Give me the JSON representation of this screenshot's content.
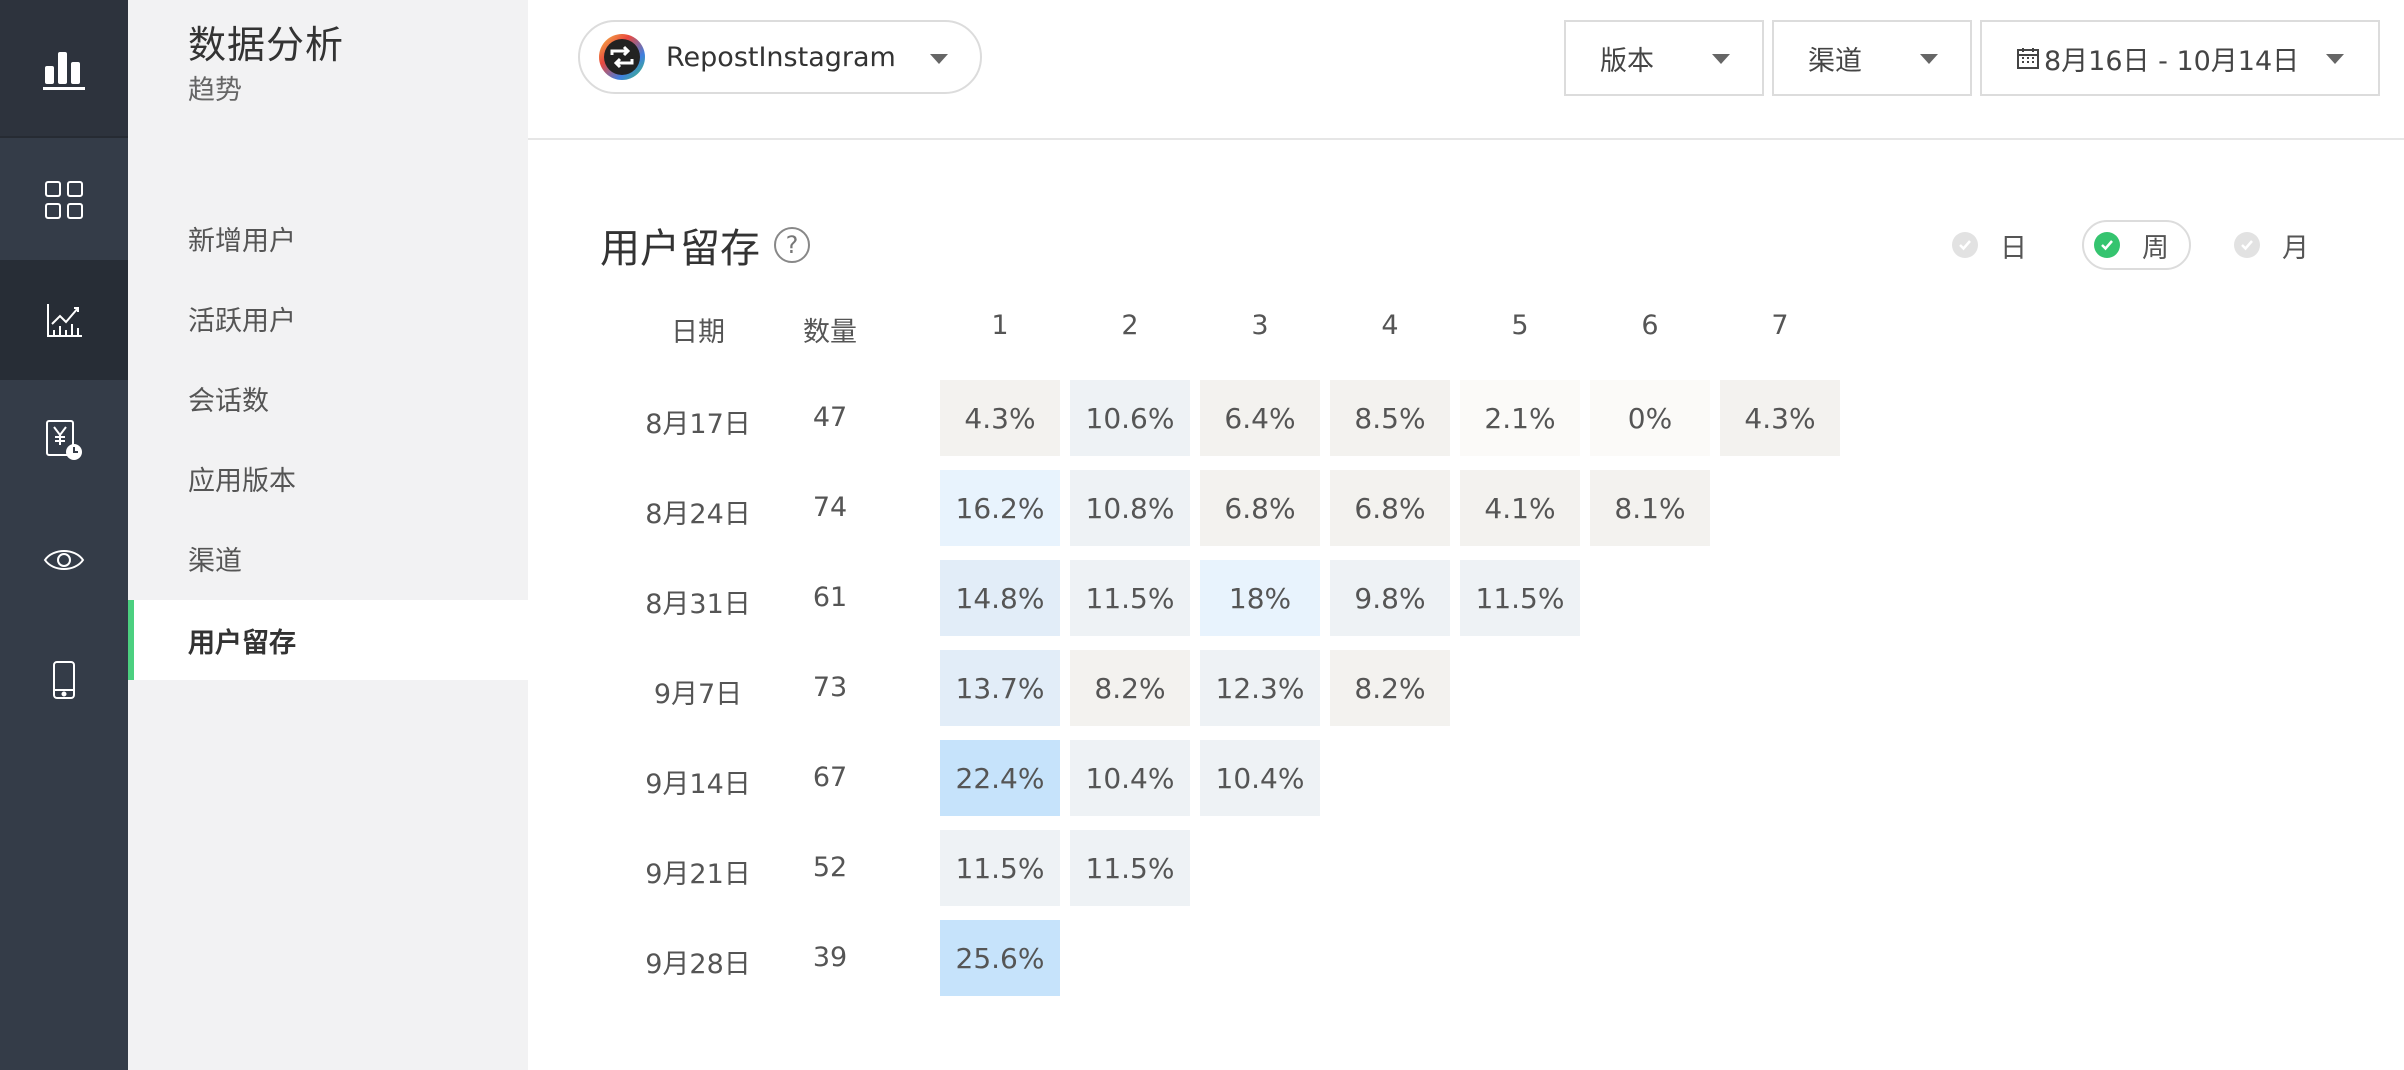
{
  "sidebar": {
    "title": "数据分析",
    "subtitle": "趋势",
    "items": [
      {
        "label": "新增用户"
      },
      {
        "label": "活跃用户"
      },
      {
        "label": "会话数"
      },
      {
        "label": "应用版本"
      },
      {
        "label": "渠道"
      },
      {
        "label": "用户留存",
        "active": true
      }
    ]
  },
  "rail": {
    "icons": [
      "bar-chart-logo-icon",
      "dashboard-grid-icon",
      "trend-chart-icon",
      "revenue-clock-icon",
      "eye-icon",
      "mobile-device-icon"
    ],
    "active_index": 2
  },
  "header": {
    "app_name": "RepostInstagram",
    "version_label": "版本",
    "channel_label": "渠道",
    "date_range": "8月16日 - 10月14日"
  },
  "retention": {
    "title": "用户留存",
    "help": "?",
    "periods": [
      {
        "label": "日",
        "active": false
      },
      {
        "label": "周",
        "active": true
      },
      {
        "label": "月",
        "active": false
      }
    ],
    "headers": {
      "date": "日期",
      "count": "数量",
      "columns": [
        "1",
        "2",
        "3",
        "4",
        "5",
        "6",
        "7"
      ]
    },
    "rows": [
      {
        "date": "8月17日",
        "count": "47",
        "values": [
          "4.3%",
          "10.6%",
          "6.4%",
          "8.5%",
          "2.1%",
          "0%",
          "4.3%"
        ]
      },
      {
        "date": "8月24日",
        "count": "74",
        "values": [
          "16.2%",
          "10.8%",
          "6.8%",
          "6.8%",
          "4.1%",
          "8.1%"
        ]
      },
      {
        "date": "8月31日",
        "count": "61",
        "values": [
          "14.8%",
          "11.5%",
          "18%",
          "9.8%",
          "11.5%"
        ]
      },
      {
        "date": "9月7日",
        "count": "73",
        "values": [
          "13.7%",
          "8.2%",
          "12.3%",
          "8.2%"
        ]
      },
      {
        "date": "9月14日",
        "count": "67",
        "values": [
          "22.4%",
          "10.4%",
          "10.4%"
        ]
      },
      {
        "date": "9月21日",
        "count": "52",
        "values": [
          "11.5%",
          "11.5%"
        ]
      },
      {
        "date": "9月28日",
        "count": "39",
        "values": [
          "25.6%"
        ]
      }
    ],
    "colors": {
      "low": "#fbfaf8",
      "warm": "#f3f2ef",
      "mid": "#eef2f5",
      "blue_light": "#e8f3fd",
      "blue_mid": "#e2edf8",
      "blue_strong": "#c6e3fb"
    }
  }
}
